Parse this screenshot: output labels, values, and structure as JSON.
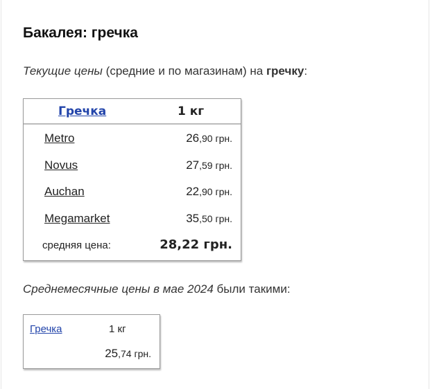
{
  "title": "Бакалея: гречка",
  "intro": {
    "italic": "Текущие цены",
    "normal": " (средние и по магазинам) на ",
    "bold": "гречку",
    "end": ":"
  },
  "current_table": {
    "product_link": "Гречка",
    "unit": "1 кг",
    "rows": [
      {
        "store": "Metro",
        "price_main": "26",
        "price_rest": ",90 грн."
      },
      {
        "store": "Novus",
        "price_main": "27",
        "price_rest": ",59 грн."
      },
      {
        "store": "Auchan",
        "price_main": "22",
        "price_rest": ",90 грн."
      },
      {
        "store": "Megamarket",
        "price_main": "35",
        "price_rest": ",50 грн."
      }
    ],
    "average_label": "средняя цена:",
    "average_price": "28,22 грн."
  },
  "monthly": {
    "italic": "Среднемесячные цены в мае 2024",
    "normal": " были такими:"
  },
  "monthly_table": {
    "product_link": "Гречка",
    "unit": "1 кг",
    "price_main": "25",
    "price_rest": ",74 грн."
  }
}
